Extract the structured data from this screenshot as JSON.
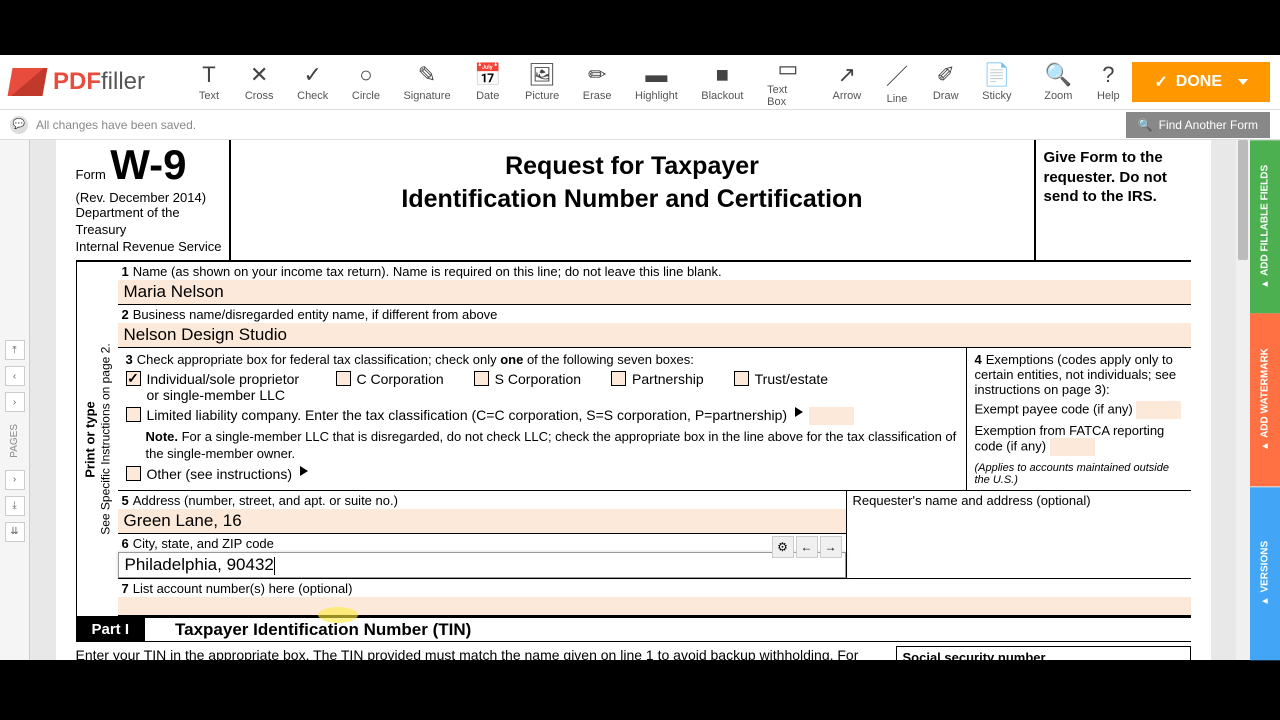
{
  "logo": {
    "pdf": "PDF",
    "filler": "filler"
  },
  "tools": [
    {
      "icon": "T",
      "label": "Text"
    },
    {
      "icon": "✕",
      "label": "Cross"
    },
    {
      "icon": "✓",
      "label": "Check"
    },
    {
      "icon": "○",
      "label": "Circle"
    },
    {
      "icon": "✎",
      "label": "Signature"
    },
    {
      "icon": "📅",
      "label": "Date"
    },
    {
      "icon": "🖼",
      "label": "Picture"
    },
    {
      "icon": "✏",
      "label": "Erase"
    },
    {
      "icon": "▬",
      "label": "Highlight"
    },
    {
      "icon": "■",
      "label": "Blackout"
    },
    {
      "icon": "▭",
      "label": "Text Box"
    },
    {
      "icon": "↗",
      "label": "Arrow"
    },
    {
      "icon": "／",
      "label": "Line"
    },
    {
      "icon": "✐",
      "label": "Draw"
    },
    {
      "icon": "📄",
      "label": "Sticky"
    }
  ],
  "aux_tools": [
    {
      "icon": "🔍",
      "label": "Zoom"
    },
    {
      "icon": "?",
      "label": "Help"
    }
  ],
  "done_label": "DONE",
  "status_text": "All changes have been saved.",
  "find_label": "Find Another Form",
  "rail_label": "PAGES",
  "right_tabs": [
    {
      "label": "ADD FILLABLE FIELDS",
      "cls": "rt-green"
    },
    {
      "label": "ADD WATERMARK",
      "cls": "rt-orange"
    },
    {
      "label": "VERSIONS",
      "cls": "rt-blue"
    }
  ],
  "form": {
    "form_word": "Form",
    "code": "W-9",
    "rev": "(Rev. December 2014)",
    "dept": "Department of the Treasury\nInternal Revenue Service",
    "title": "Request for Taxpayer\nIdentification Number and Certification",
    "give": "Give Form to the requester. Do not send to the IRS.",
    "sidebar1": "Print or type",
    "sidebar2": "See Specific Instructions on page 2.",
    "line1_label": "Name (as shown on your income tax return). Name is required on this line; do not leave this line blank.",
    "line1_value": "Maria Nelson",
    "line2_label": "Business name/disregarded entity name, if different from above",
    "line2_value": "Nelson Design Studio",
    "line3_label": "Check appropriate box for federal tax classification; check only ",
    "line3_bold": "one",
    "line3_rest": " of the following seven boxes:",
    "cb1": "Individual/sole proprietor or single-member LLC",
    "cb2": "C Corporation",
    "cb3": "S Corporation",
    "cb4": "Partnership",
    "cb5": "Trust/estate",
    "llc": "Limited liability company. Enter the tax classification (C=C corporation, S=S corporation, P=partnership)",
    "note_bold": "Note.",
    "note": " For a single-member LLC that is disregarded, do not check LLC; check the appropriate box in the line above for the tax classification of the single-member owner.",
    "other": "Other (see instructions)",
    "line4_label": "Exemptions (codes apply only to certain entities, not individuals; see instructions on page 3):",
    "exempt1": "Exempt payee code (if any)",
    "exempt2": "Exemption from FATCA reporting code (if any)",
    "applies": "(Applies to accounts maintained outside the U.S.)",
    "line5_label": "Address (number, street, and apt. or suite no.)",
    "line5_value": "Green Lane, 16",
    "line6_label": "City, state, and ZIP code",
    "line6_value": "Philadelphia, 90432",
    "requester": "Requester's name and address (optional)",
    "line7_label": "List account number(s) here (optional)",
    "part1": "Part I",
    "part1_title": "Taxpayer Identification Number (TIN)",
    "tin_text": "Enter your TIN in the appropriate box. The TIN provided must match the name given on line 1 to avoid backup withholding. For individuals, this is generally your social security number (SSN). However, for a",
    "ssn_label": "Social security number"
  }
}
